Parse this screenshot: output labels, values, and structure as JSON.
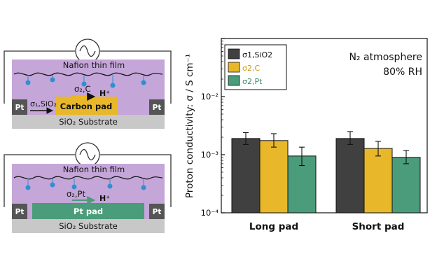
{
  "schematics": [
    {
      "film_label": "Nafion thin film",
      "electrode_left": "Pt",
      "electrode_right": "Pt",
      "pad_label": "Carbon pad",
      "substrate_label": "SiO₂ Substrate",
      "proton_label": "H⁺",
      "sigma_top": "σ₂,C",
      "sigma_bottom": "σ₁,SiO₂"
    },
    {
      "film_label": "Nafion thin film",
      "electrode_left": "Pt",
      "electrode_right": "Pt",
      "pad_label": "Pt pad",
      "substrate_label": "SiO₂ Substrate",
      "proton_label": "H⁺",
      "sigma_top": "σ₂,Pt"
    }
  ],
  "colors": {
    "nafion": "#c4a6d9",
    "substrate": "#c8c8c8",
    "electrode": "#555555",
    "carbon_pad": "#e8b82a",
    "pt_pad": "#4a9c7a",
    "ion": "#2f8fd0",
    "series_1": "#404040",
    "series_2": "#e8b82a",
    "series_3": "#4a9c7a"
  },
  "chart_data": {
    "type": "bar",
    "yscale": "log",
    "ylim": [
      0.0001,
      0.1
    ],
    "ylabel": "Proton conductivity: σ / S cm⁻¹",
    "ytick_labels": [
      "10⁻⁴",
      "10⁻³",
      "10⁻²"
    ],
    "annotation": [
      "N₂ atmosphere",
      "80% RH"
    ],
    "legend_position": "top-left",
    "categories": [
      "Long pad",
      "Short pad"
    ],
    "series": [
      {
        "name": "σ1,SiO2",
        "values": [
          0.0019,
          0.0019
        ],
        "err_low": [
          0.0015,
          0.0015
        ],
        "err_high": [
          0.0024,
          0.0025
        ]
      },
      {
        "name": "σ2,C",
        "values": [
          0.00175,
          0.00128
        ],
        "err_low": [
          0.00135,
          0.00095
        ],
        "err_high": [
          0.0023,
          0.0017
        ]
      },
      {
        "name": "σ2,Pt",
        "values": [
          0.00095,
          0.0009
        ],
        "err_low": [
          0.00065,
          0.0007
        ],
        "err_high": [
          0.00135,
          0.00118
        ]
      }
    ]
  }
}
